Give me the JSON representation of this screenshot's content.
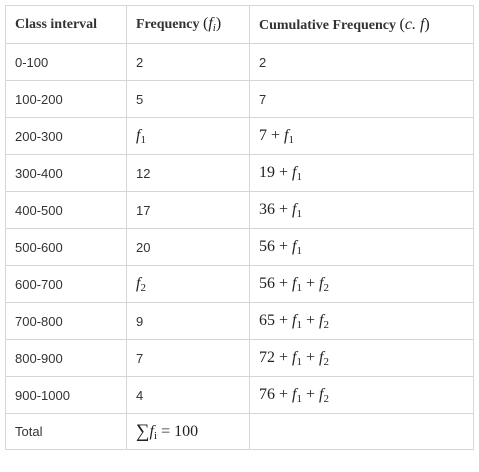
{
  "headers": {
    "class_interval": "Class interval",
    "frequency": "Frequency",
    "frequency_symbol": "f",
    "frequency_subscript": "i",
    "cumulative": "Cumulative Frequency",
    "cumulative_symbol": "c. f"
  },
  "rows": [
    {
      "interval": "0-100",
      "frequency": "2",
      "cumulative": "2"
    },
    {
      "interval": "100-200",
      "frequency": "5",
      "cumulative": "7"
    },
    {
      "interval": "200-300",
      "frequency": "f1",
      "cumulative": "7 + f1"
    },
    {
      "interval": "300-400",
      "frequency": "12",
      "cumulative": "19 + f1"
    },
    {
      "interval": "400-500",
      "frequency": "17",
      "cumulative": "36 + f1"
    },
    {
      "interval": "500-600",
      "frequency": "20",
      "cumulative": "56 + f1"
    },
    {
      "interval": "600-700",
      "frequency": "f2",
      "cumulative": "56 + f1 + f2"
    },
    {
      "interval": "700-800",
      "frequency": "9",
      "cumulative": "65 + f1 + f2"
    },
    {
      "interval": "800-900",
      "frequency": "7",
      "cumulative": "72 + f1 + f2"
    },
    {
      "interval": "900-1000",
      "frequency": "4",
      "cumulative": "76 + f1 + f2"
    }
  ],
  "total": {
    "label": "Total",
    "frequency": "∑fi = 100",
    "cumulative": ""
  }
}
